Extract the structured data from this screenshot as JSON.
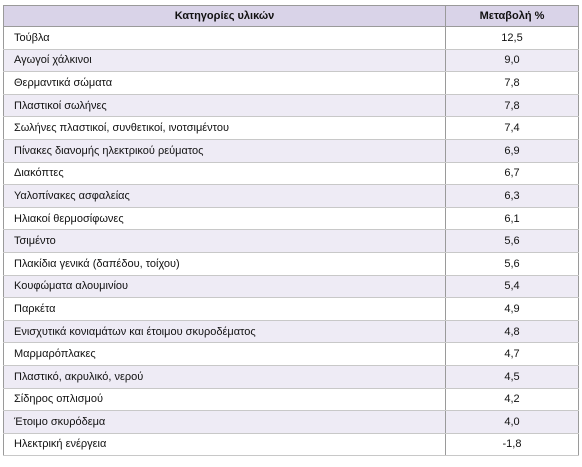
{
  "table": {
    "header": [
      "Κατηγορίες υλικών",
      "Μεταβολή %"
    ],
    "rows": [
      [
        "Τούβλα",
        "12,5"
      ],
      [
        "Αγωγοί χάλκινοι",
        "9,0"
      ],
      [
        "Θερμαντικά σώματα",
        "7,8"
      ],
      [
        "Πλαστικοί σωλήνες",
        "7,8"
      ],
      [
        "Σωλήνες πλαστικοί, συνθετικοί, ινοτσιμέντου",
        "7,4"
      ],
      [
        "Πίνακες διανομής ηλεκτρικού ρεύματος",
        "6,9"
      ],
      [
        "Διακόπτες",
        "6,7"
      ],
      [
        "Υαλοπίνακες ασφαλείας",
        "6,3"
      ],
      [
        "Ηλιακοί θερμοσίφωνες",
        "6,1"
      ],
      [
        "Τσιμέντο",
        "5,6"
      ],
      [
        "Πλακίδια γενικά (δαπέδου, τοίχου)",
        "5,6"
      ],
      [
        "Κουφώματα αλουμινίου",
        "5,4"
      ],
      [
        "Παρκέτα",
        "4,9"
      ],
      [
        "Ενισχυτικά κονιαμάτων και έτοιμου σκυροδέματος",
        "4,8"
      ],
      [
        "Μαρμαρόπλακες",
        "4,7"
      ],
      [
        "Πλαστικό, ακρυλικό, νερού",
        "4,5"
      ],
      [
        "Σίδηρος οπλισμού",
        "4,2"
      ],
      [
        "Έτοιμο σκυρόδεμα",
        "4,0"
      ],
      [
        "Ηλεκτρική ενέργεια",
        "-1,8"
      ]
    ]
  }
}
